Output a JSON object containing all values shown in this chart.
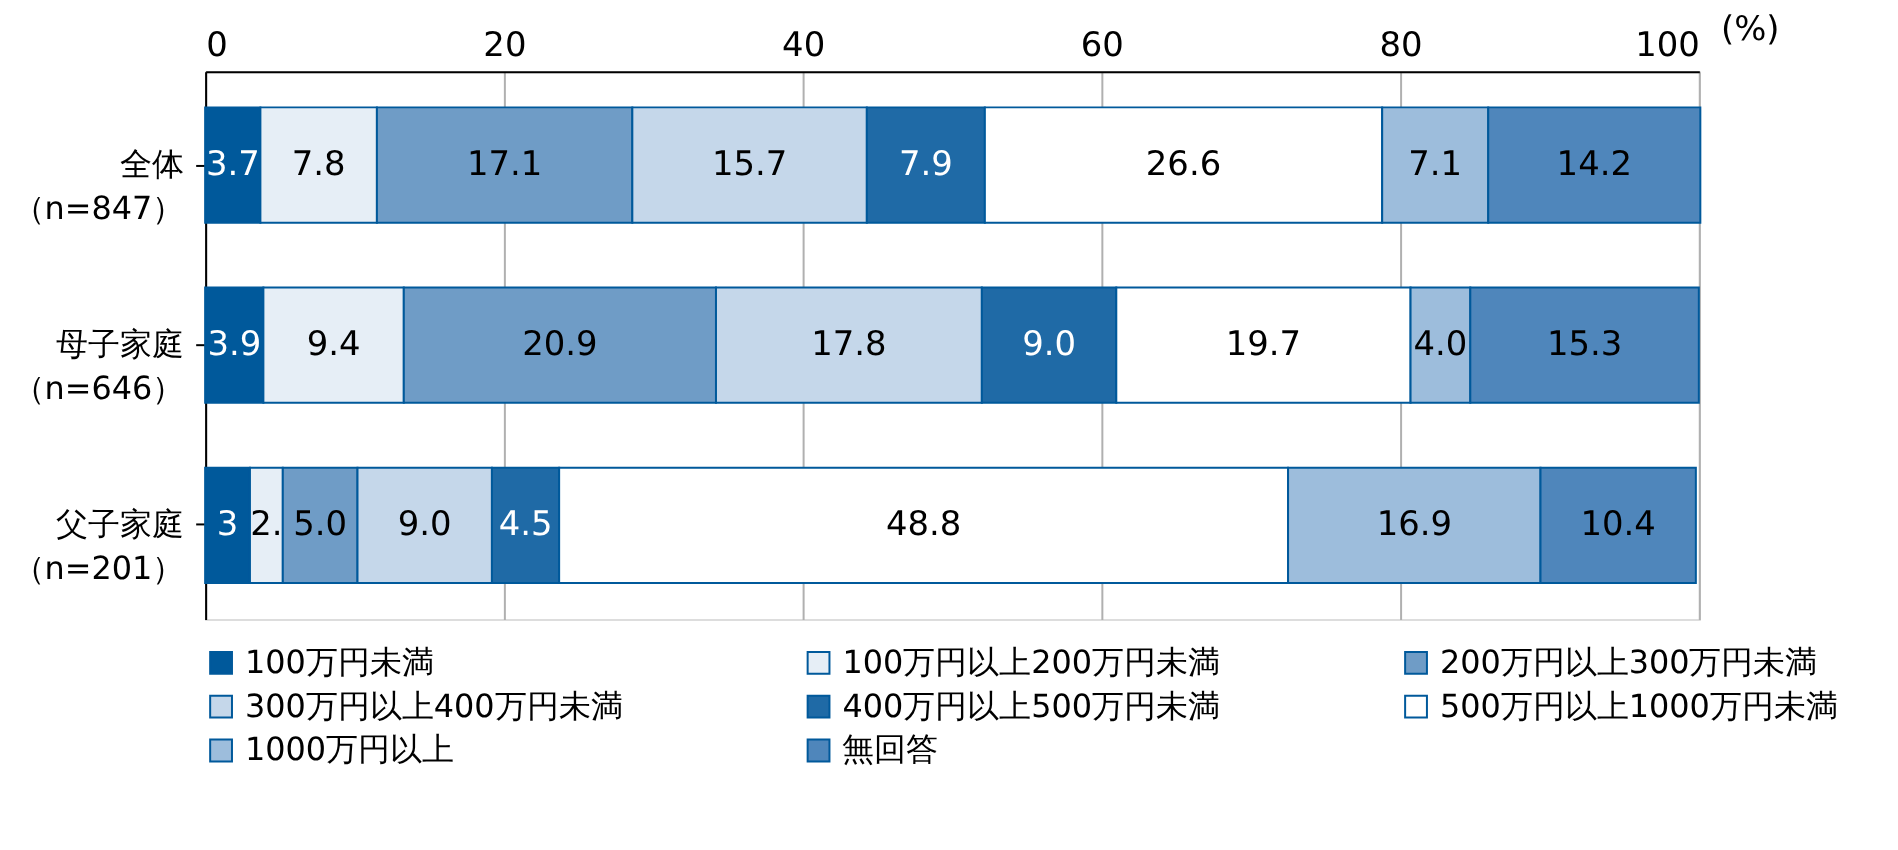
{
  "chart_data": {
    "type": "bar",
    "orientation": "horizontal",
    "stacked": true,
    "xlabel": "(%)",
    "categories": [
      "全体（n=847）",
      "母子家庭（n=646）",
      "父子家庭（n=201）"
    ],
    "xlim": [
      0,
      100
    ],
    "xticks": [
      0,
      20,
      40,
      60,
      80,
      100
    ],
    "grid": "x",
    "legend": "bottom",
    "data_labels": true,
    "series": [
      {
        "name": "100万円未満",
        "color": "#00599b",
        "values": [
          3.7,
          3.9,
          3.0
        ],
        "value_labels": [
          "3.7",
          "3.9",
          "3"
        ]
      },
      {
        "name": "100万円以上200万円未満",
        "color": "#e6eef6",
        "values": [
          7.8,
          9.4,
          2.2
        ],
        "value_labels": [
          "7.8",
          "9.4",
          "2."
        ]
      },
      {
        "name": "200万円以上300万円未満",
        "color": "#6f9cc6",
        "values": [
          17.1,
          20.9,
          5.0
        ],
        "value_labels": [
          "17.1",
          "20.9",
          "5.0"
        ]
      },
      {
        "name": "300万円以上400万円未満",
        "color": "#c5d7ea",
        "values": [
          15.7,
          17.8,
          9.0
        ],
        "value_labels": [
          "15.7",
          "17.8",
          "9.0"
        ]
      },
      {
        "name": "400万円以上500万円未満",
        "color": "#1f6aa6",
        "values": [
          7.9,
          9.0,
          4.5
        ],
        "value_labels": [
          "7.9",
          "9.0",
          "4.5"
        ]
      },
      {
        "name": "500万円以上1000万円未満",
        "color": "#ffffff",
        "values": [
          26.6,
          19.7,
          48.8
        ],
        "value_labels": [
          "26.6",
          "19.7",
          "48.8"
        ]
      },
      {
        "name": "1000万円以上",
        "color": "#9dbddc",
        "values": [
          7.1,
          4.0,
          16.9
        ],
        "value_labels": [
          "7.1",
          "4.0",
          "16.9"
        ]
      },
      {
        "name": "無回答",
        "color": "#4f86bb",
        "values": [
          14.2,
          15.3,
          10.4
        ],
        "value_labels": [
          "14.2",
          "15.3",
          "10.4"
        ]
      }
    ]
  }
}
